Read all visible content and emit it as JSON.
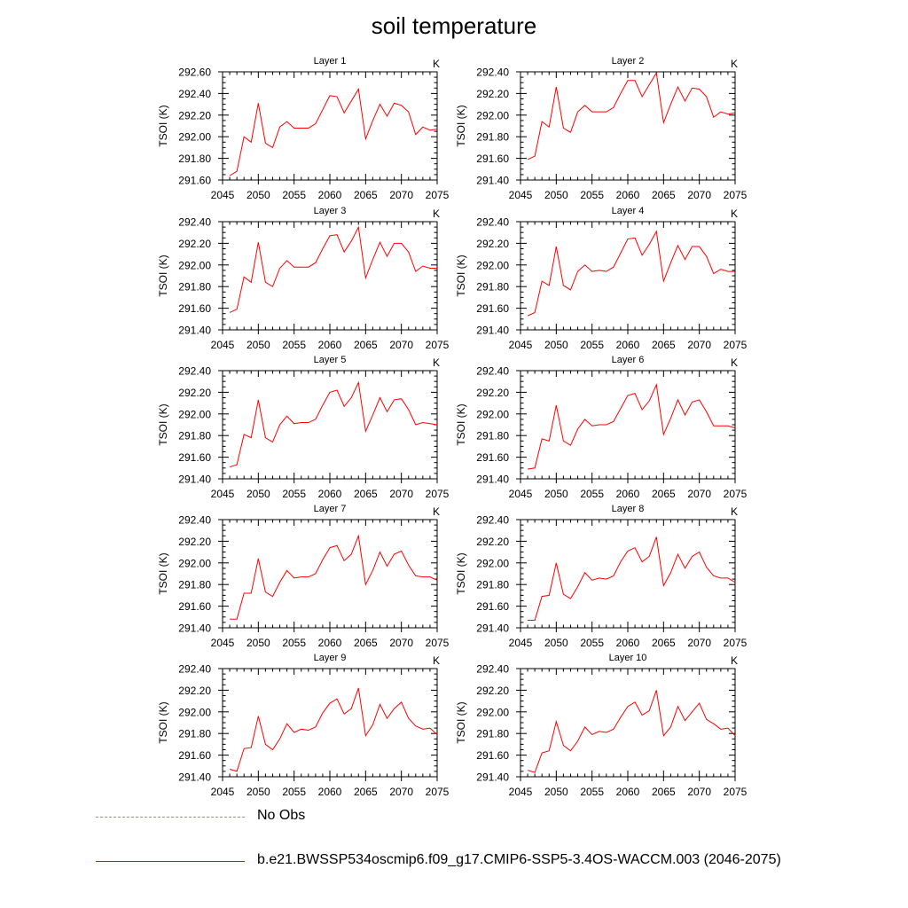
{
  "title": "soil temperature",
  "legend": [
    {
      "label": "No Obs",
      "color": "#8888ff",
      "style": "dashed"
    },
    {
      "label": "b.e21.BWSSP534oscmip6.f09_g17.CMIP6-SSP5-3.4OS-WACCM.003 (2046-2075)",
      "color": "#ff0000",
      "style": "solid"
    }
  ],
  "chart_data": [
    {
      "type": "line",
      "title": "Layer 1",
      "units": "K",
      "ylabel": "TSOI  (K)",
      "xlim": [
        2045,
        2075
      ],
      "ylim": [
        291.6,
        292.6
      ],
      "yticks": [
        "291.60",
        "291.80",
        "292.00",
        "292.20",
        "292.40",
        "292.60"
      ],
      "xticks": [
        "2045",
        "2050",
        "2055",
        "2060",
        "2065",
        "2070",
        "2075"
      ],
      "series": [
        {
          "name": "b.e21.BWSSP534oscmip6.f09_g17.CMIP6-SSP5-3.4OS-WACCM.003 (2046-2075)",
          "color": "#ff0000",
          "x": [
            2046,
            2047,
            2048,
            2049,
            2050,
            2051,
            2052,
            2053,
            2054,
            2055,
            2056,
            2057,
            2058,
            2059,
            2060,
            2061,
            2062,
            2063,
            2064,
            2065,
            2066,
            2067,
            2068,
            2069,
            2070,
            2071,
            2072,
            2073,
            2074,
            2075
          ],
          "y": [
            291.64,
            291.68,
            292.0,
            291.95,
            292.31,
            291.94,
            291.9,
            292.09,
            292.14,
            292.08,
            292.08,
            292.08,
            292.12,
            292.25,
            292.38,
            292.37,
            292.22,
            292.33,
            292.44,
            291.98,
            292.15,
            292.3,
            292.19,
            292.31,
            292.29,
            292.23,
            292.02,
            292.09,
            292.06,
            292.07
          ]
        }
      ]
    },
    {
      "type": "line",
      "title": "Layer 2",
      "units": "K",
      "ylabel": "TSOI  (K)",
      "xlim": [
        2045,
        2075
      ],
      "ylim": [
        291.4,
        292.4
      ],
      "yticks": [
        "291.40",
        "291.60",
        "291.80",
        "292.00",
        "292.20",
        "292.40"
      ],
      "xticks": [
        "2045",
        "2050",
        "2055",
        "2060",
        "2065",
        "2070",
        "2075"
      ],
      "series": [
        {
          "name": "b.e21.BWSSP534oscmip6.f09_g17.CMIP6-SSP5-3.4OS-WACCM.003 (2046-2075)",
          "color": "#ff0000",
          "x": [
            2046,
            2047,
            2048,
            2049,
            2050,
            2051,
            2052,
            2053,
            2054,
            2055,
            2056,
            2057,
            2058,
            2059,
            2060,
            2061,
            2062,
            2063,
            2064,
            2065,
            2066,
            2067,
            2068,
            2069,
            2070,
            2071,
            2072,
            2073,
            2074,
            2075
          ],
          "y": [
            291.59,
            291.62,
            291.94,
            291.89,
            292.26,
            291.88,
            291.84,
            292.03,
            292.09,
            292.03,
            292.03,
            292.03,
            292.07,
            292.2,
            292.32,
            292.32,
            292.17,
            292.28,
            292.39,
            291.93,
            292.1,
            292.26,
            292.13,
            292.25,
            292.24,
            292.17,
            291.98,
            292.03,
            292.01,
            292.02
          ]
        }
      ]
    },
    {
      "type": "line",
      "title": "Layer 3",
      "units": "K",
      "ylabel": "TSOI  (K)",
      "xlim": [
        2045,
        2075
      ],
      "ylim": [
        291.4,
        292.4
      ],
      "yticks": [
        "291.40",
        "291.60",
        "291.80",
        "292.00",
        "292.20",
        "292.40"
      ],
      "xticks": [
        "2045",
        "2050",
        "2055",
        "2060",
        "2065",
        "2070",
        "2075"
      ],
      "series": [
        {
          "name": "b.e21.BWSSP534oscmip6.f09_g17.CMIP6-SSP5-3.4OS-WACCM.003 (2046-2075)",
          "color": "#ff0000",
          "x": [
            2046,
            2047,
            2048,
            2049,
            2050,
            2051,
            2052,
            2053,
            2054,
            2055,
            2056,
            2057,
            2058,
            2059,
            2060,
            2061,
            2062,
            2063,
            2064,
            2065,
            2066,
            2067,
            2068,
            2069,
            2070,
            2071,
            2072,
            2073,
            2074,
            2075
          ],
          "y": [
            291.56,
            291.59,
            291.89,
            291.84,
            292.21,
            291.84,
            291.8,
            291.97,
            292.04,
            291.98,
            291.98,
            291.98,
            292.02,
            292.15,
            292.27,
            292.28,
            292.12,
            292.22,
            292.35,
            291.88,
            292.05,
            292.21,
            292.08,
            292.2,
            292.2,
            292.12,
            291.94,
            291.99,
            291.97,
            291.97
          ]
        }
      ]
    },
    {
      "type": "line",
      "title": "Layer 4",
      "units": "K",
      "ylabel": "TSOI  (K)",
      "xlim": [
        2045,
        2075
      ],
      "ylim": [
        291.4,
        292.4
      ],
      "yticks": [
        "291.40",
        "291.60",
        "291.80",
        "292.00",
        "292.20",
        "292.40"
      ],
      "xticks": [
        "2045",
        "2050",
        "2055",
        "2060",
        "2065",
        "2070",
        "2075"
      ],
      "series": [
        {
          "name": "b.e21.BWSSP534oscmip6.f09_g17.CMIP6-SSP5-3.4OS-WACCM.003 (2046-2075)",
          "color": "#ff0000",
          "x": [
            2046,
            2047,
            2048,
            2049,
            2050,
            2051,
            2052,
            2053,
            2054,
            2055,
            2056,
            2057,
            2058,
            2059,
            2060,
            2061,
            2062,
            2063,
            2064,
            2065,
            2066,
            2067,
            2068,
            2069,
            2070,
            2071,
            2072,
            2073,
            2074,
            2075
          ],
          "y": [
            291.53,
            291.56,
            291.85,
            291.81,
            292.17,
            291.81,
            291.77,
            291.94,
            292.0,
            291.94,
            291.95,
            291.94,
            291.98,
            292.11,
            292.24,
            292.25,
            292.09,
            292.19,
            292.31,
            291.85,
            292.02,
            292.18,
            292.05,
            292.17,
            292.17,
            292.08,
            291.92,
            291.96,
            291.94,
            291.94
          ]
        }
      ]
    },
    {
      "type": "line",
      "title": "Layer 5",
      "units": "K",
      "ylabel": "TSOI  (K)",
      "xlim": [
        2045,
        2075
      ],
      "ylim": [
        291.4,
        292.4
      ],
      "yticks": [
        "291.40",
        "291.60",
        "291.80",
        "292.00",
        "292.20",
        "292.40"
      ],
      "xticks": [
        "2045",
        "2050",
        "2055",
        "2060",
        "2065",
        "2070",
        "2075"
      ],
      "series": [
        {
          "name": "b.e21.BWSSP534oscmip6.f09_g17.CMIP6-SSP5-3.4OS-WACCM.003 (2046-2075)",
          "color": "#ff0000",
          "x": [
            2046,
            2047,
            2048,
            2049,
            2050,
            2051,
            2052,
            2053,
            2054,
            2055,
            2056,
            2057,
            2058,
            2059,
            2060,
            2061,
            2062,
            2063,
            2064,
            2065,
            2066,
            2067,
            2068,
            2069,
            2070,
            2071,
            2072,
            2073,
            2074,
            2075
          ],
          "y": [
            291.51,
            291.53,
            291.81,
            291.78,
            292.13,
            291.78,
            291.74,
            291.9,
            291.98,
            291.91,
            291.92,
            291.92,
            291.95,
            292.08,
            292.2,
            292.22,
            292.07,
            292.15,
            292.29,
            291.84,
            291.99,
            292.15,
            292.02,
            292.13,
            292.14,
            292.04,
            291.9,
            291.92,
            291.91,
            291.9
          ]
        }
      ]
    },
    {
      "type": "line",
      "title": "Layer 6",
      "units": "K",
      "ylabel": "TSOI  (K)",
      "xlim": [
        2045,
        2075
      ],
      "ylim": [
        291.4,
        292.4
      ],
      "yticks": [
        "291.40",
        "291.60",
        "291.80",
        "292.00",
        "292.20",
        "292.40"
      ],
      "xticks": [
        "2045",
        "2050",
        "2055",
        "2060",
        "2065",
        "2070",
        "2075"
      ],
      "series": [
        {
          "name": "b.e21.BWSSP534oscmip6.f09_g17.CMIP6-SSP5-3.4OS-WACCM.003 (2046-2075)",
          "color": "#ff0000",
          "x": [
            2046,
            2047,
            2048,
            2049,
            2050,
            2051,
            2052,
            2053,
            2054,
            2055,
            2056,
            2057,
            2058,
            2059,
            2060,
            2061,
            2062,
            2063,
            2064,
            2065,
            2066,
            2067,
            2068,
            2069,
            2070,
            2071,
            2072,
            2073,
            2074,
            2075
          ],
          "y": [
            291.49,
            291.5,
            291.77,
            291.75,
            292.08,
            291.75,
            291.71,
            291.86,
            291.95,
            291.89,
            291.9,
            291.9,
            291.93,
            292.05,
            292.17,
            292.19,
            292.04,
            292.12,
            292.27,
            291.81,
            291.96,
            292.13,
            291.99,
            292.11,
            292.13,
            292.02,
            291.89,
            291.89,
            291.89,
            291.87
          ]
        }
      ]
    },
    {
      "type": "line",
      "title": "Layer 7",
      "units": "K",
      "ylabel": "TSOI  (K)",
      "xlim": [
        2045,
        2075
      ],
      "ylim": [
        291.4,
        292.4
      ],
      "yticks": [
        "291.40",
        "291.60",
        "291.80",
        "292.00",
        "292.20",
        "292.40"
      ],
      "xticks": [
        "2045",
        "2050",
        "2055",
        "2060",
        "2065",
        "2070",
        "2075"
      ],
      "series": [
        {
          "name": "b.e21.BWSSP534oscmip6.f09_g17.CMIP6-SSP5-3.4OS-WACCM.003 (2046-2075)",
          "color": "#ff0000",
          "x": [
            2046,
            2047,
            2048,
            2049,
            2050,
            2051,
            2052,
            2053,
            2054,
            2055,
            2056,
            2057,
            2058,
            2059,
            2060,
            2061,
            2062,
            2063,
            2064,
            2065,
            2066,
            2067,
            2068,
            2069,
            2070,
            2071,
            2072,
            2073,
            2074,
            2075
          ],
          "y": [
            291.48,
            291.48,
            291.72,
            291.72,
            292.04,
            291.73,
            291.69,
            291.82,
            291.93,
            291.86,
            291.87,
            291.87,
            291.9,
            292.03,
            292.14,
            292.16,
            292.02,
            292.08,
            292.25,
            291.8,
            291.93,
            292.1,
            291.97,
            292.08,
            292.11,
            291.98,
            291.88,
            291.87,
            291.87,
            291.84
          ]
        }
      ]
    },
    {
      "type": "line",
      "title": "Layer 8",
      "units": "K",
      "ylabel": "TSOI  (K)",
      "xlim": [
        2045,
        2075
      ],
      "ylim": [
        291.4,
        292.4
      ],
      "yticks": [
        "291.40",
        "291.60",
        "291.80",
        "292.00",
        "292.20",
        "292.40"
      ],
      "xticks": [
        "2045",
        "2050",
        "2055",
        "2060",
        "2065",
        "2070",
        "2075"
      ],
      "series": [
        {
          "name": "b.e21.BWSSP534oscmip6.f09_g17.CMIP6-SSP5-3.4OS-WACCM.003 (2046-2075)",
          "color": "#ff0000",
          "x": [
            2046,
            2047,
            2048,
            2049,
            2050,
            2051,
            2052,
            2053,
            2054,
            2055,
            2056,
            2057,
            2058,
            2059,
            2060,
            2061,
            2062,
            2063,
            2064,
            2065,
            2066,
            2067,
            2068,
            2069,
            2070,
            2071,
            2072,
            2073,
            2074,
            2075
          ],
          "y": [
            291.47,
            291.47,
            291.69,
            291.7,
            292.0,
            291.71,
            291.67,
            291.78,
            291.91,
            291.84,
            291.86,
            291.85,
            291.88,
            292.01,
            292.11,
            292.14,
            292.01,
            292.06,
            292.24,
            291.79,
            291.91,
            292.08,
            291.95,
            292.06,
            292.1,
            291.96,
            291.88,
            291.86,
            291.86,
            291.82
          ]
        }
      ]
    },
    {
      "type": "line",
      "title": "Layer 9",
      "units": "K",
      "ylabel": "TSOI  (K)",
      "xlim": [
        2045,
        2075
      ],
      "ylim": [
        291.4,
        292.4
      ],
      "yticks": [
        "291.40",
        "291.60",
        "291.80",
        "292.00",
        "292.20",
        "292.40"
      ],
      "xticks": [
        "2045",
        "2050",
        "2055",
        "2060",
        "2065",
        "2070",
        "2075"
      ],
      "series": [
        {
          "name": "b.e21.BWSSP534oscmip6.f09_g17.CMIP6-SSP5-3.4OS-WACCM.003 (2046-2075)",
          "color": "#ff0000",
          "x": [
            2046,
            2047,
            2048,
            2049,
            2050,
            2051,
            2052,
            2053,
            2054,
            2055,
            2056,
            2057,
            2058,
            2059,
            2060,
            2061,
            2062,
            2063,
            2064,
            2065,
            2066,
            2067,
            2068,
            2069,
            2070,
            2071,
            2072,
            2073,
            2074,
            2075
          ],
          "y": [
            291.47,
            291.45,
            291.66,
            291.67,
            291.96,
            291.7,
            291.65,
            291.75,
            291.89,
            291.81,
            291.84,
            291.83,
            291.86,
            291.99,
            292.08,
            292.12,
            291.98,
            292.03,
            292.22,
            291.78,
            291.88,
            292.07,
            291.94,
            292.03,
            292.09,
            291.94,
            291.87,
            291.84,
            291.85,
            291.79
          ]
        }
      ]
    },
    {
      "type": "line",
      "title": "Layer 10",
      "units": "K",
      "ylabel": "TSOI  (K)",
      "xlim": [
        2045,
        2075
      ],
      "ylim": [
        291.4,
        292.4
      ],
      "yticks": [
        "291.40",
        "291.60",
        "291.80",
        "292.00",
        "292.20",
        "292.40"
      ],
      "xticks": [
        "2045",
        "2050",
        "2055",
        "2060",
        "2065",
        "2070",
        "2075"
      ],
      "series": [
        {
          "name": "b.e21.BWSSP534oscmip6.f09_g17.CMIP6-SSP5-3.4OS-WACCM.003 (2046-2075)",
          "color": "#ff0000",
          "x": [
            2046,
            2047,
            2048,
            2049,
            2050,
            2051,
            2052,
            2053,
            2054,
            2055,
            2056,
            2057,
            2058,
            2059,
            2060,
            2061,
            2062,
            2063,
            2064,
            2065,
            2066,
            2067,
            2068,
            2069,
            2070,
            2071,
            2072,
            2073,
            2074,
            2075
          ],
          "y": [
            291.46,
            291.44,
            291.62,
            291.64,
            291.91,
            291.69,
            291.64,
            291.73,
            291.86,
            291.79,
            291.82,
            291.81,
            291.84,
            291.95,
            292.05,
            292.09,
            291.97,
            292.01,
            292.2,
            291.78,
            291.86,
            292.05,
            291.92,
            292.0,
            292.08,
            291.93,
            291.89,
            291.84,
            291.85,
            291.78
          ]
        }
      ]
    }
  ]
}
